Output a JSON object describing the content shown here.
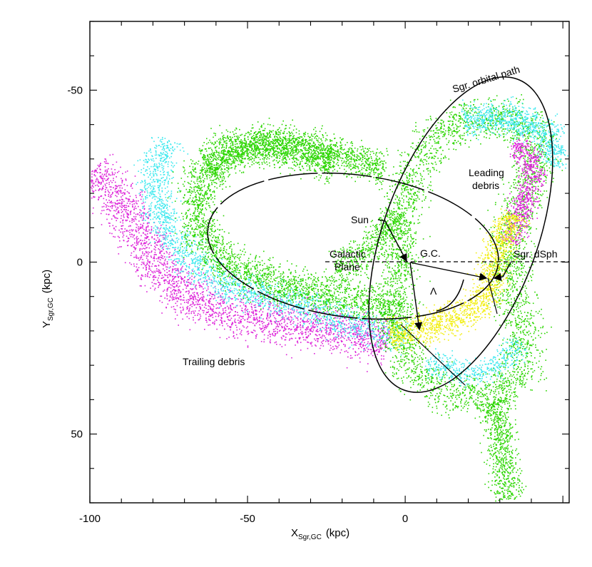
{
  "chart_data": {
    "type": "scatter",
    "title": "",
    "xlabel": "X",
    "xlabel_sub": "Sgr,GC",
    "xlabel_unit": "(kpc)",
    "ylabel": "Y",
    "ylabel_sub": "Sgr,GC",
    "ylabel_unit": "(kpc)",
    "xlim": [
      -100,
      52
    ],
    "ylim": [
      -70,
      70
    ],
    "y_inverted": true,
    "x_tick_labels": [
      {
        "value": -100,
        "label": "-100"
      },
      {
        "value": -50,
        "label": "-50"
      },
      {
        "value": 0,
        "label": "0"
      }
    ],
    "y_tick_labels": [
      {
        "value": -50,
        "label": "-50"
      },
      {
        "value": 0,
        "label": "0"
      },
      {
        "value": 50,
        "label": "50"
      }
    ],
    "colors": {
      "green": "#2bd600",
      "cyan": "#3ce8ee",
      "magenta": "#dd22d8",
      "yellow": "#f2ee10"
    },
    "annotations": {
      "orbital_path": "Sgr. orbital path",
      "leading_line1": "Leading",
      "leading_line2": "debris",
      "trailing": "Trailing debris",
      "sun": "Sun",
      "gc": "G.C.",
      "sgr_dsph": "Sgr. dSph",
      "galactic_line1": "Galactic",
      "galactic_line2": "Plane",
      "lambda": "Λ"
    }
  }
}
